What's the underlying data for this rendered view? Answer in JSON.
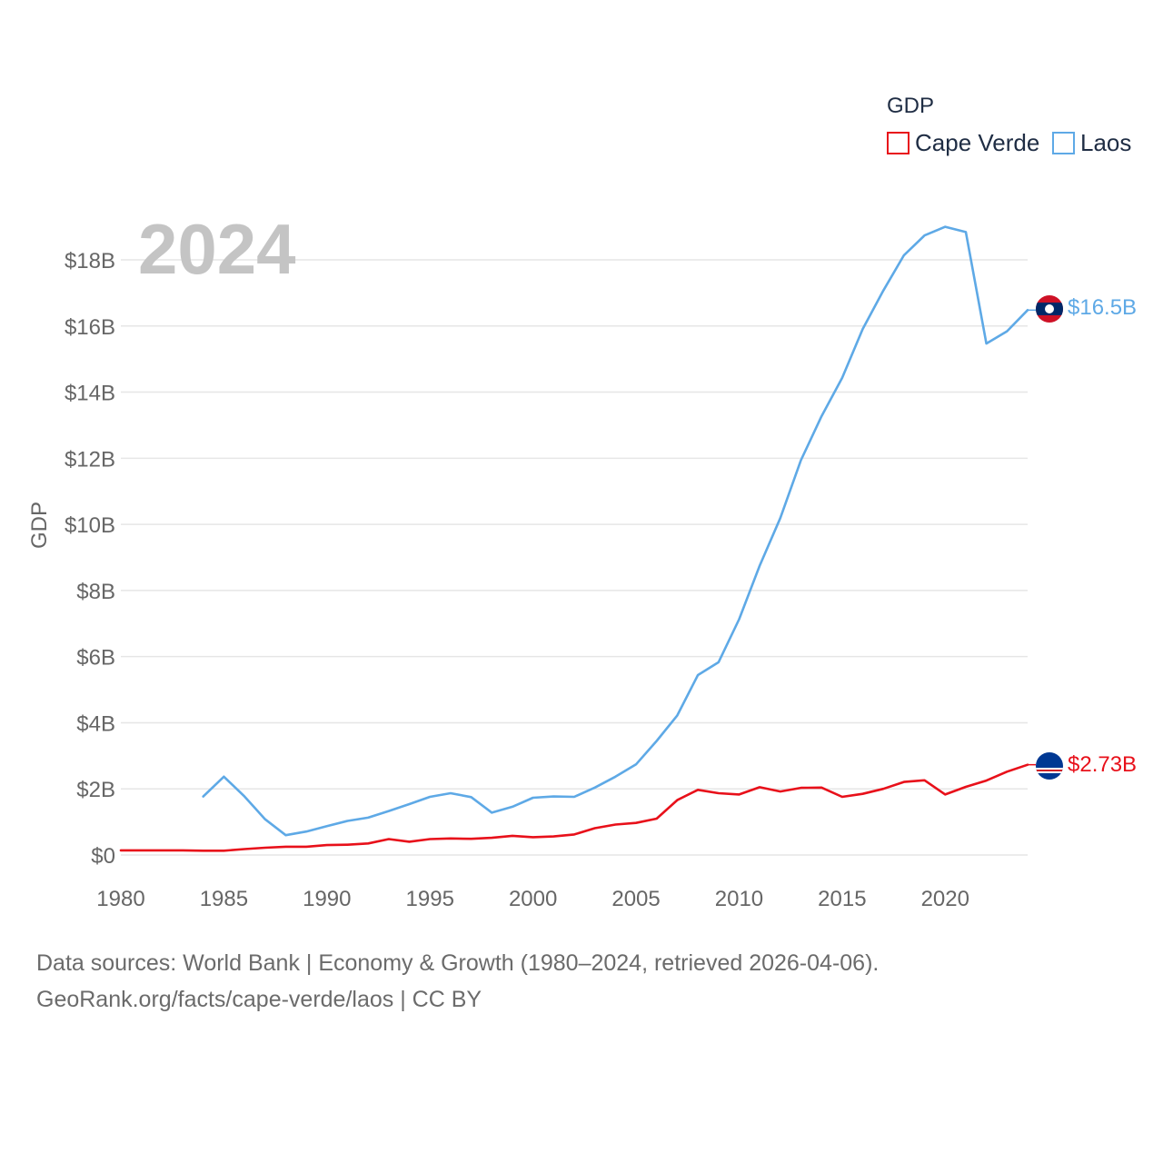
{
  "chart_data": {
    "type": "line",
    "year_display": "2024",
    "ylabel": "GDP",
    "xlabel": "",
    "xlim": [
      1980,
      2024
    ],
    "ylim": [
      0,
      19000000000
    ],
    "x_ticks": [
      1980,
      1985,
      1990,
      1995,
      2000,
      2005,
      2010,
      2015,
      2020
    ],
    "y_ticks": [
      {
        "value": 0,
        "label": "$0"
      },
      {
        "value": 2000000000,
        "label": "$2B"
      },
      {
        "value": 4000000000,
        "label": "$4B"
      },
      {
        "value": 6000000000,
        "label": "$6B"
      },
      {
        "value": 8000000000,
        "label": "$8B"
      },
      {
        "value": 10000000000,
        "label": "$10B"
      },
      {
        "value": 12000000000,
        "label": "$12B"
      },
      {
        "value": 14000000000,
        "label": "$14B"
      },
      {
        "value": 16000000000,
        "label": "$16B"
      },
      {
        "value": 18000000000,
        "label": "$18B"
      }
    ],
    "legend": {
      "title": "GDP",
      "position": "top-right"
    },
    "series": [
      {
        "name": "Cape Verde",
        "color": "#e8101a",
        "end_label": "$2.73B",
        "flag_icon": "cape-verde-flag-icon",
        "points": [
          [
            1980,
            0.14
          ],
          [
            1981,
            0.14
          ],
          [
            1982,
            0.14
          ],
          [
            1983,
            0.14
          ],
          [
            1984,
            0.13
          ],
          [
            1985,
            0.13
          ],
          [
            1986,
            0.18
          ],
          [
            1987,
            0.22
          ],
          [
            1988,
            0.25
          ],
          [
            1989,
            0.25
          ],
          [
            1990,
            0.3
          ],
          [
            1991,
            0.31
          ],
          [
            1992,
            0.35
          ],
          [
            1993,
            0.48
          ],
          [
            1994,
            0.4
          ],
          [
            1995,
            0.48
          ],
          [
            1996,
            0.5
          ],
          [
            1997,
            0.49
          ],
          [
            1998,
            0.52
          ],
          [
            1999,
            0.58
          ],
          [
            2000,
            0.54
          ],
          [
            2001,
            0.56
          ],
          [
            2002,
            0.62
          ],
          [
            2003,
            0.81
          ],
          [
            2004,
            0.92
          ],
          [
            2005,
            0.97
          ],
          [
            2006,
            1.1
          ],
          [
            2007,
            1.66
          ],
          [
            2008,
            1.97
          ],
          [
            2009,
            1.87
          ],
          [
            2010,
            1.83
          ],
          [
            2011,
            2.05
          ],
          [
            2012,
            1.92
          ],
          [
            2013,
            2.03
          ],
          [
            2014,
            2.04
          ],
          [
            2015,
            1.76
          ],
          [
            2016,
            1.85
          ],
          [
            2017,
            2.0
          ],
          [
            2018,
            2.21
          ],
          [
            2019,
            2.26
          ],
          [
            2020,
            1.83
          ],
          [
            2021,
            2.06
          ],
          [
            2022,
            2.25
          ],
          [
            2023,
            2.52
          ],
          [
            2024,
            2.73
          ]
        ]
      },
      {
        "name": "Laos",
        "color": "#5ea9e6",
        "end_label": "$16.5B",
        "flag_icon": "laos-flag-icon",
        "points": [
          [
            1984,
            1.77
          ],
          [
            1985,
            2.37
          ],
          [
            1986,
            1.77
          ],
          [
            1987,
            1.08
          ],
          [
            1988,
            0.6
          ],
          [
            1989,
            0.71
          ],
          [
            1990,
            0.87
          ],
          [
            1991,
            1.03
          ],
          [
            1992,
            1.13
          ],
          [
            1993,
            1.33
          ],
          [
            1994,
            1.54
          ],
          [
            1995,
            1.76
          ],
          [
            1996,
            1.87
          ],
          [
            1997,
            1.75
          ],
          [
            1998,
            1.28
          ],
          [
            1999,
            1.46
          ],
          [
            2000,
            1.73
          ],
          [
            2001,
            1.77
          ],
          [
            2002,
            1.76
          ],
          [
            2003,
            2.04
          ],
          [
            2004,
            2.37
          ],
          [
            2005,
            2.74
          ],
          [
            2006,
            3.45
          ],
          [
            2007,
            4.22
          ],
          [
            2008,
            5.44
          ],
          [
            2009,
            5.83
          ],
          [
            2010,
            7.13
          ],
          [
            2011,
            8.75
          ],
          [
            2012,
            10.19
          ],
          [
            2013,
            11.94
          ],
          [
            2014,
            13.27
          ],
          [
            2015,
            14.43
          ],
          [
            2016,
            15.91
          ],
          [
            2017,
            17.07
          ],
          [
            2018,
            18.14
          ],
          [
            2019,
            18.74
          ],
          [
            2020,
            19.0
          ],
          [
            2021,
            18.84
          ],
          [
            2022,
            15.47
          ],
          [
            2023,
            15.84
          ],
          [
            2024,
            16.48
          ]
        ]
      }
    ],
    "value_unit": "billions USD"
  },
  "footer": {
    "line1": "Data sources: World Bank | Economy & Growth (1980–2024, retrieved 2026-04-06).",
    "line2": "GeoRank.org/facts/cape-verde/laos | CC BY"
  }
}
